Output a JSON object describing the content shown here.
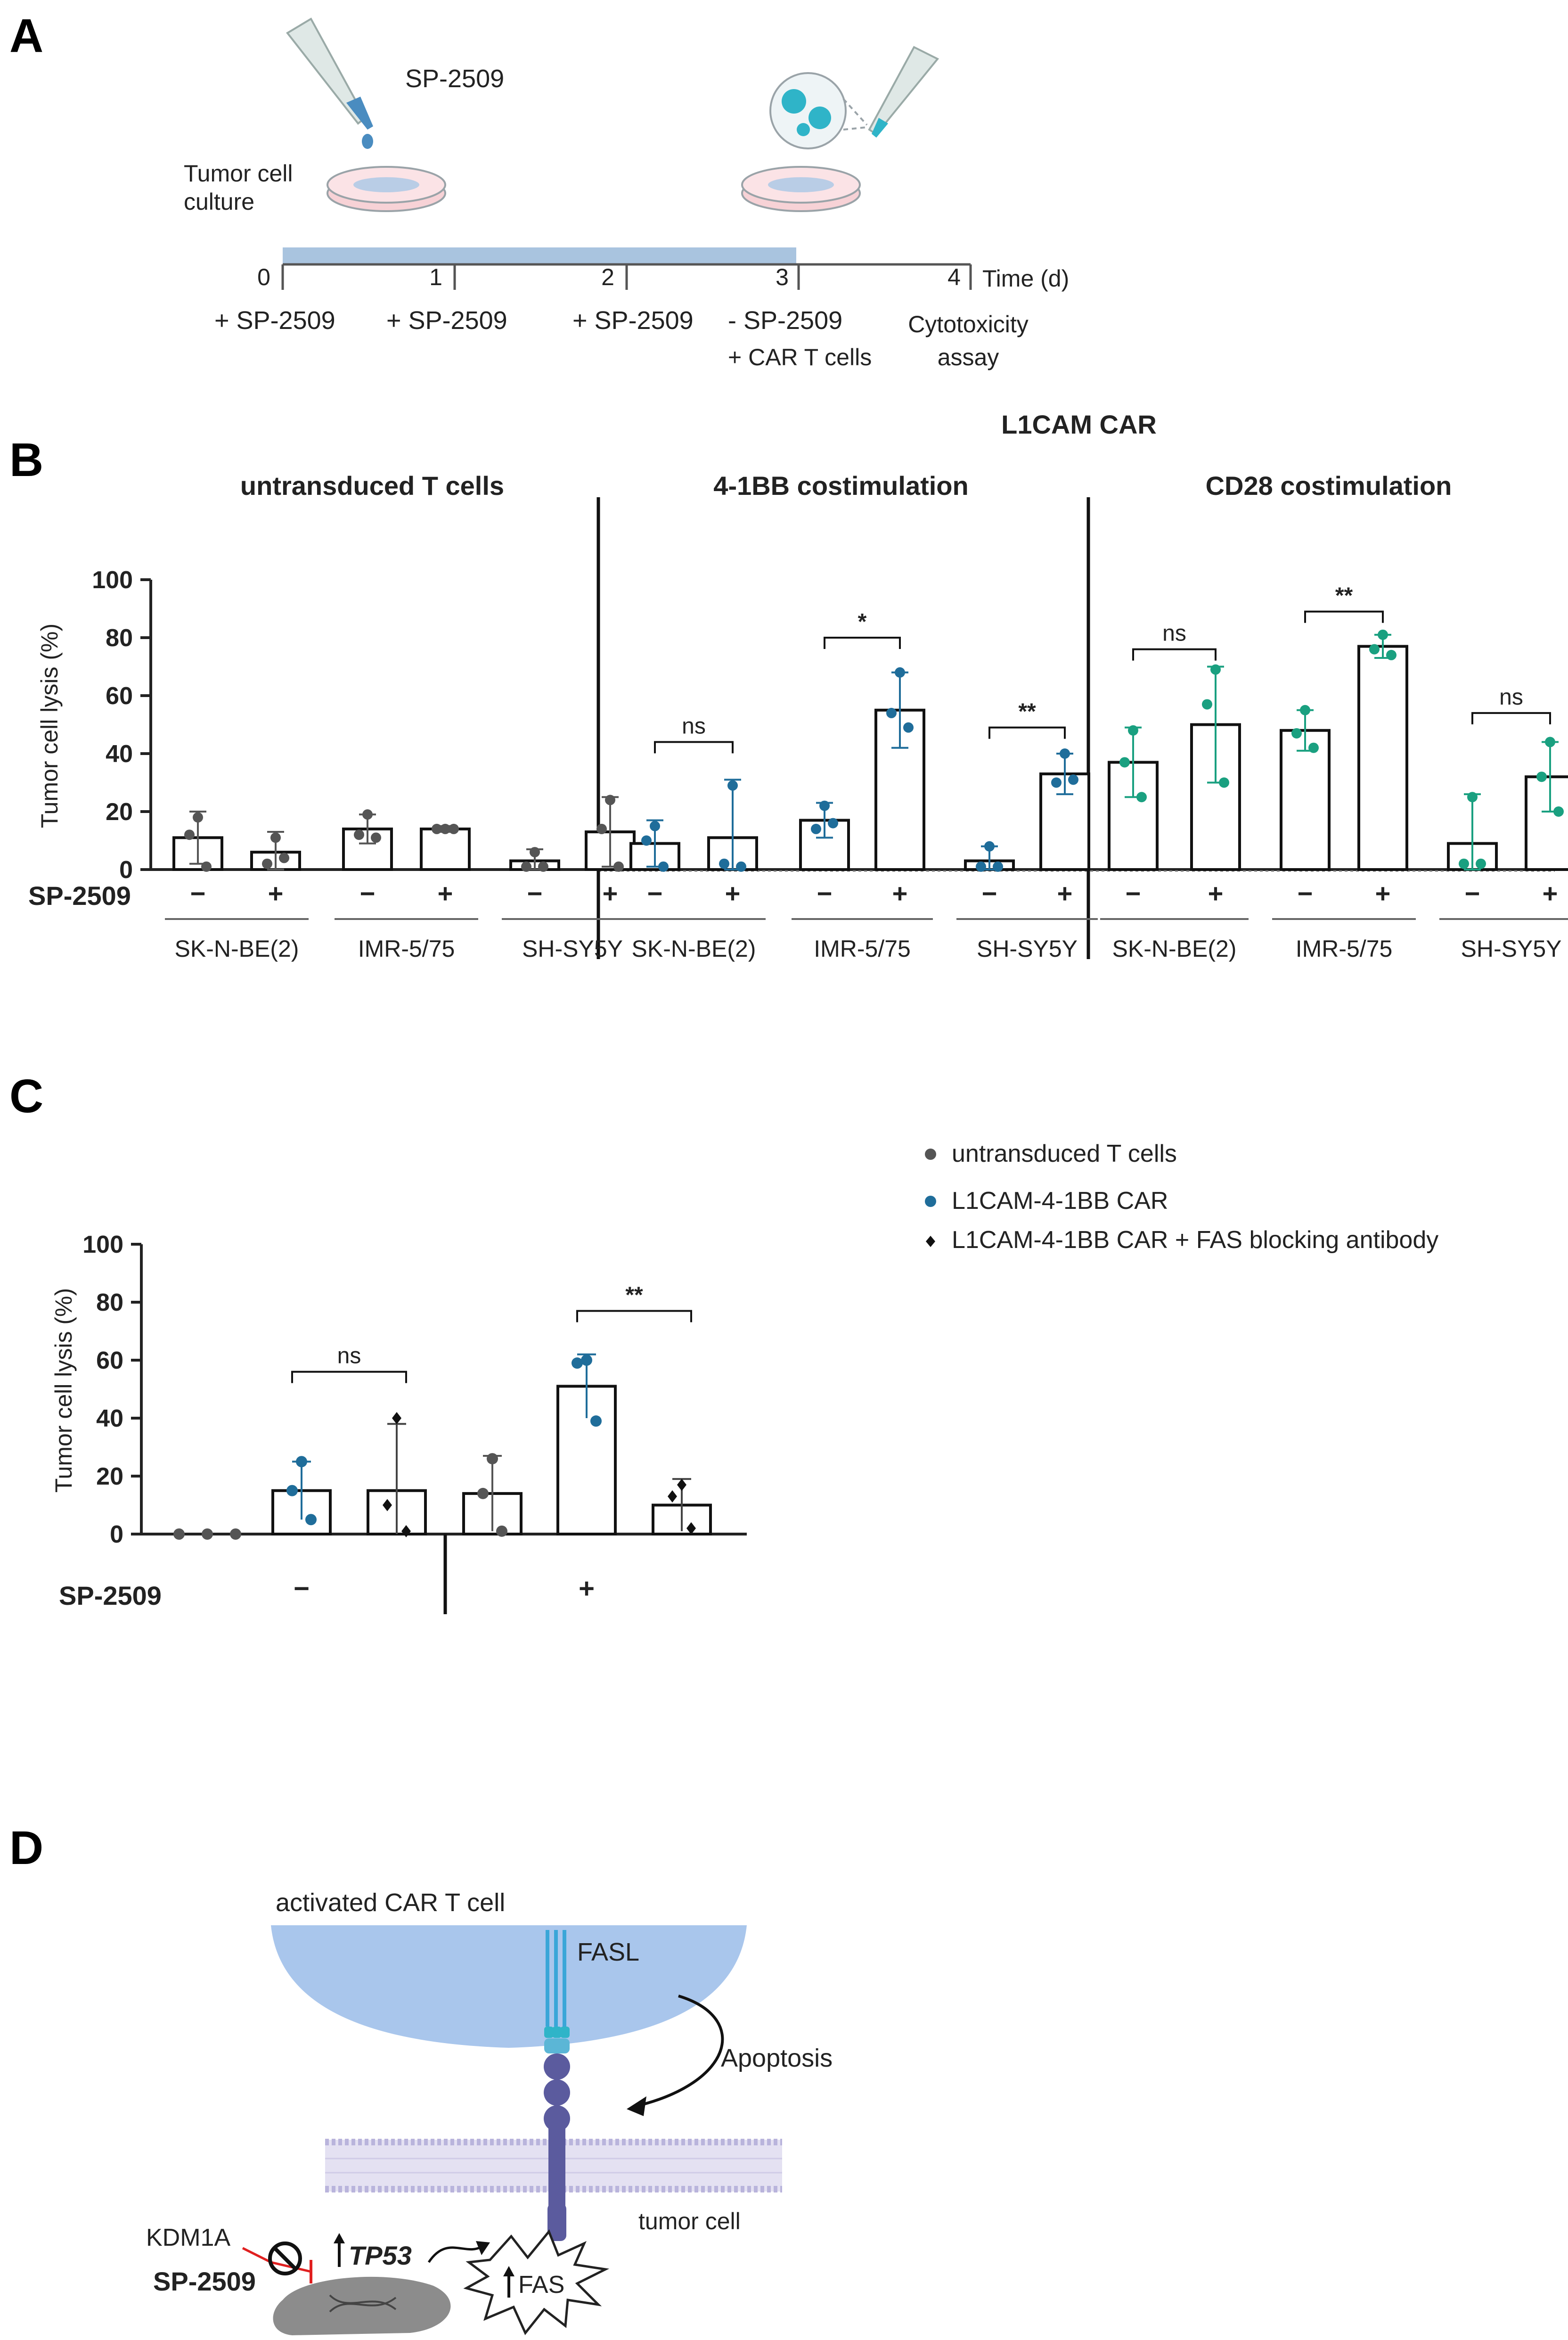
{
  "panels": {
    "a": "A",
    "b": "B",
    "c": "C",
    "d": "D"
  },
  "colors": {
    "gray": "#555555",
    "blue": "#1f6d9a",
    "teal": "#1aa080",
    "red": "#e02020",
    "membrane": "#b9b4dc",
    "receptor": "#5b5b9e",
    "cell": "#a9c6ec",
    "fasl": "#3aa6d8",
    "nucleus": "#8c8c8c"
  },
  "panel_a": {
    "drug_label": "SP-2509",
    "culture_label": [
      "Tumor cell",
      "culture"
    ],
    "time_axis_label": "Time (d)",
    "days": [
      "0",
      "1",
      "2",
      "3",
      "4"
    ],
    "events": [
      [
        "+ SP-2509"
      ],
      [
        "+ SP-2509"
      ],
      [
        "+ SP-2509"
      ],
      [
        "- SP-2509",
        "+ CAR T cells"
      ],
      [
        "Cytotoxicity",
        "assay"
      ]
    ]
  },
  "chart_data": [
    {
      "type": "bar",
      "panel": "B",
      "supertitle": "L1CAM CAR",
      "ylabel": "Tumor cell lysis (%)",
      "ylim": [
        0,
        100
      ],
      "yticks": [
        "0",
        "20",
        "40",
        "60",
        "80",
        "100"
      ],
      "treatment_label": "SP-2509",
      "signs": [
        "−",
        "+"
      ],
      "groups": [
        {
          "title": "untransduced T cells",
          "color": "#555555",
          "lines": [
            "SK-N-BE(2)",
            "IMR-5/75",
            "SH-SY5Y"
          ],
          "values": [
            11,
            6,
            14,
            14,
            3,
            13
          ],
          "errors": [
            9,
            7,
            5,
            1,
            4,
            12
          ],
          "points": [
            [
              18,
              12,
              1
            ],
            [
              11,
              2,
              4
            ],
            [
              19,
              12,
              11
            ],
            [
              14,
              14,
              14
            ],
            [
              6,
              1,
              1
            ],
            [
              24,
              14,
              1
            ]
          ],
          "sig": []
        },
        {
          "title": "4-1BB costimulation",
          "color": "#1f6d9a",
          "lines": [
            "SK-N-BE(2)",
            "IMR-5/75",
            "SH-SY5Y"
          ],
          "values": [
            9,
            11,
            17,
            55,
            3,
            33
          ],
          "errors": [
            8,
            20,
            6,
            13,
            5,
            7
          ],
          "points": [
            [
              15,
              10,
              1
            ],
            [
              29,
              2,
              1
            ],
            [
              22,
              14,
              16
            ],
            [
              68,
              54,
              49
            ],
            [
              8,
              1,
              1
            ],
            [
              40,
              30,
              31
            ]
          ],
          "sig": [
            {
              "from": 0,
              "to": 1,
              "label": "ns",
              "y": 44
            },
            {
              "from": 2,
              "to": 3,
              "label": "*",
              "y": 80
            },
            {
              "from": 4,
              "to": 5,
              "label": "**",
              "y": 49
            }
          ]
        },
        {
          "title": "CD28 costimulation",
          "color": "#1aa080",
          "lines": [
            "SK-N-BE(2)",
            "IMR-5/75",
            "SH-SY5Y"
          ],
          "values": [
            37,
            50,
            48,
            77,
            9,
            32
          ],
          "errors": [
            12,
            20,
            7,
            4,
            17,
            12
          ],
          "points": [
            [
              48,
              37,
              25
            ],
            [
              69,
              57,
              30
            ],
            [
              55,
              47,
              42
            ],
            [
              81,
              76,
              74
            ],
            [
              25,
              2,
              2
            ],
            [
              44,
              32,
              20
            ]
          ],
          "sig": [
            {
              "from": 0,
              "to": 1,
              "label": "ns",
              "y": 76
            },
            {
              "from": 2,
              "to": 3,
              "label": "**",
              "y": 89
            },
            {
              "from": 4,
              "to": 5,
              "label": "ns",
              "y": 54
            }
          ]
        }
      ]
    },
    {
      "type": "bar",
      "panel": "C",
      "ylabel": "Tumor cell lysis (%)",
      "ylim": [
        0,
        100
      ],
      "yticks": [
        "0",
        "20",
        "40",
        "60",
        "80",
        "100"
      ],
      "treatment_label": "SP-2509",
      "treatment_signs": [
        "−",
        "+"
      ],
      "legend": [
        {
          "label": "untransduced T cells",
          "marker": "circle",
          "color": "#555555"
        },
        {
          "label": "L1CAM-4-1BB CAR",
          "marker": "circle",
          "color": "#1f6d9a"
        },
        {
          "label": "L1CAM-4-1BB CAR + FAS blocking antibody",
          "marker": "diamond",
          "color": "#111111"
        }
      ],
      "bars": [
        {
          "treatment": "-",
          "series": 0,
          "value": 0,
          "error": 0,
          "points": [
            0,
            0,
            0
          ]
        },
        {
          "treatment": "-",
          "series": 1,
          "value": 15,
          "error": 10,
          "points": [
            25,
            15,
            5
          ]
        },
        {
          "treatment": "-",
          "series": 2,
          "value": 15,
          "error": 23,
          "points": [
            40,
            10,
            1
          ]
        },
        {
          "treatment": "+",
          "series": 0,
          "value": 14,
          "error": 13,
          "points": [
            26,
            14,
            1
          ]
        },
        {
          "treatment": "+",
          "series": 1,
          "value": 51,
          "error": 11,
          "points": [
            60,
            59,
            39
          ]
        },
        {
          "treatment": "+",
          "series": 2,
          "value": 10,
          "error": 9,
          "points": [
            17,
            13,
            2
          ]
        }
      ],
      "sig": [
        {
          "from": 1,
          "to": 2,
          "label": "ns",
          "y": 56
        },
        {
          "from": 4,
          "to": 5,
          "label": "**",
          "y": 77
        }
      ]
    }
  ],
  "panel_d": {
    "car_t_label": "activated CAR T cell",
    "fasl_label": "FASL",
    "apoptosis_label": "Apoptosis",
    "tumor_label": "tumor cell",
    "kdm1a_label": "KDM1A",
    "drug_label": "SP-2509",
    "tp53_label": "TP53",
    "fas_label": "FAS"
  }
}
